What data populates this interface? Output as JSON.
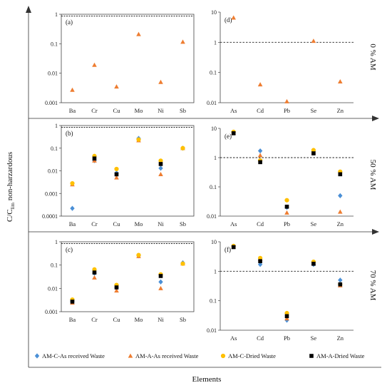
{
  "figure": {
    "xlabel": "Elements",
    "ylabel_main": "C/C",
    "ylabel_sub": "lim",
    "ylabel_tail": " non-harzardous",
    "row_labels": [
      "0 % AM",
      "50 % AM",
      "70 % AM"
    ]
  },
  "series_styles": {
    "AM-C-As received Waste": {
      "color": "#4a8fd6",
      "marker": "diamond"
    },
    "AM-A-As received Waste": {
      "color": "#ee7d31",
      "marker": "triangle"
    },
    "AM-C-Dried Waste": {
      "color": "#ffc000",
      "marker": "circle"
    },
    "AM-A-Dried Waste": {
      "color": "#000000",
      "marker": "square"
    }
  },
  "legend": [
    {
      "name": "AM-C-As received Waste",
      "color": "#4a8fd6",
      "marker": "diamond"
    },
    {
      "name": "AM-A-As received Waste",
      "color": "#ee7d31",
      "marker": "triangle"
    },
    {
      "name": "AM-C-Dried Waste",
      "color": "#ffc000",
      "marker": "circle"
    },
    {
      "name": "AM-A-Dried Waste",
      "color": "#000000",
      "marker": "square"
    }
  ],
  "chart_data": [
    {
      "panel": "(a)",
      "type": "scatter",
      "yscale": "log",
      "ylim": [
        0.001,
        1
      ],
      "yticks": [
        "0.001",
        "0.01",
        "0.1",
        "1"
      ],
      "threshold": 1,
      "categories": [
        "Ba",
        "Cr",
        "Cu",
        "Mo",
        "Ni",
        "Sb"
      ],
      "series": [
        {
          "name": "AM-A-As received Waste",
          "values": [
            0.0027,
            0.019,
            0.0035,
            0.21,
            0.005,
            0.115
          ]
        }
      ]
    },
    {
      "panel": "(d)",
      "type": "scatter",
      "yscale": "log",
      "ylim": [
        0.01,
        10
      ],
      "yticks": [
        "0.01",
        "0.1",
        "1",
        "10"
      ],
      "threshold": 1,
      "categories": [
        "As",
        "Cd",
        "Pb",
        "Se",
        "Zn"
      ],
      "series": [
        {
          "name": "AM-A-As received Waste",
          "values": [
            6.5,
            0.04,
            0.011,
            1.1,
            0.05
          ]
        }
      ]
    },
    {
      "panel": "(b)",
      "type": "scatter",
      "yscale": "log",
      "ylim": [
        0.0001,
        1
      ],
      "yticks": [
        "0.0001",
        "0.001",
        "0.01",
        "0.1",
        "1"
      ],
      "threshold": 1,
      "categories": [
        "Ba",
        "Cr",
        "Cu",
        "Mo",
        "Ni",
        "Sb"
      ],
      "series": [
        {
          "name": "AM-C-As received Waste",
          "values": [
            0.00022,
            0.028,
            0.008,
            0.27,
            0.013,
            0.1
          ]
        },
        {
          "name": "AM-A-As received Waste",
          "values": [
            0.0025,
            0.028,
            0.005,
            0.22,
            0.007,
            0.1
          ]
        },
        {
          "name": "AM-C-Dried Waste",
          "values": [
            0.0028,
            0.045,
            0.012,
            0.24,
            0.028,
            0.1
          ]
        },
        {
          "name": "AM-A-Dried Waste",
          "values": [
            null,
            0.035,
            0.007,
            null,
            0.02,
            null
          ]
        }
      ]
    },
    {
      "panel": "(e)",
      "type": "scatter",
      "yscale": "log",
      "ylim": [
        0.01,
        10
      ],
      "yticks": [
        "0.01",
        "0.1",
        "1",
        "10"
      ],
      "threshold": 1,
      "categories": [
        "As",
        "Cd",
        "Pb",
        "Se",
        "Zn"
      ],
      "series": [
        {
          "name": "AM-C-As received Waste",
          "values": [
            7.2,
            1.7,
            0.02,
            1.6,
            0.05
          ]
        },
        {
          "name": "AM-A-As received Waste",
          "values": [
            7.0,
            1.2,
            0.013,
            1.5,
            0.014
          ]
        },
        {
          "name": "AM-C-Dried Waste",
          "values": [
            7.6,
            0.8,
            0.035,
            1.8,
            0.33
          ]
        },
        {
          "name": "AM-A-Dried Waste",
          "values": [
            6.8,
            0.7,
            0.021,
            1.4,
            0.27
          ]
        }
      ]
    },
    {
      "panel": "(c)",
      "type": "scatter",
      "yscale": "log",
      "ylim": [
        0.001,
        1
      ],
      "yticks": [
        "0.001",
        "0.01",
        "0.1",
        "1"
      ],
      "threshold": 1,
      "categories": [
        "Ba",
        "Cr",
        "Cu",
        "Mo",
        "Ni",
        "Sb"
      ],
      "series": [
        {
          "name": "AM-C-As received Waste",
          "values": [
            0.0028,
            0.045,
            0.011,
            0.25,
            0.019,
            0.125
          ]
        },
        {
          "name": "AM-A-As received Waste",
          "values": [
            0.0024,
            0.029,
            0.008,
            0.24,
            0.01,
            0.115
          ]
        },
        {
          "name": "AM-C-Dried Waste",
          "values": [
            0.0033,
            0.065,
            0.014,
            0.27,
            0.04,
            0.115
          ]
        },
        {
          "name": "AM-A-Dried Waste",
          "values": [
            0.0027,
            0.048,
            0.011,
            null,
            0.034,
            null
          ]
        }
      ]
    },
    {
      "panel": "(f)",
      "type": "scatter",
      "yscale": "log",
      "ylim": [
        0.01,
        10
      ],
      "yticks": [
        "0.01",
        "0.1",
        "1",
        "10"
      ],
      "threshold": 1,
      "categories": [
        "As",
        "Cd",
        "Pb",
        "Se",
        "Zn"
      ],
      "series": [
        {
          "name": "AM-C-As received Waste",
          "values": [
            7.0,
            1.7,
            0.022,
            1.7,
            0.5
          ]
        },
        {
          "name": "AM-A-As received Waste",
          "values": [
            6.8,
            2.6,
            0.025,
            1.8,
            0.33
          ]
        },
        {
          "name": "AM-C-Dried Waste",
          "values": [
            7.2,
            2.8,
            0.038,
            2.1,
            0.36
          ]
        },
        {
          "name": "AM-A-Dried Waste",
          "values": [
            6.6,
            2.2,
            0.03,
            1.8,
            0.36
          ]
        }
      ]
    }
  ]
}
